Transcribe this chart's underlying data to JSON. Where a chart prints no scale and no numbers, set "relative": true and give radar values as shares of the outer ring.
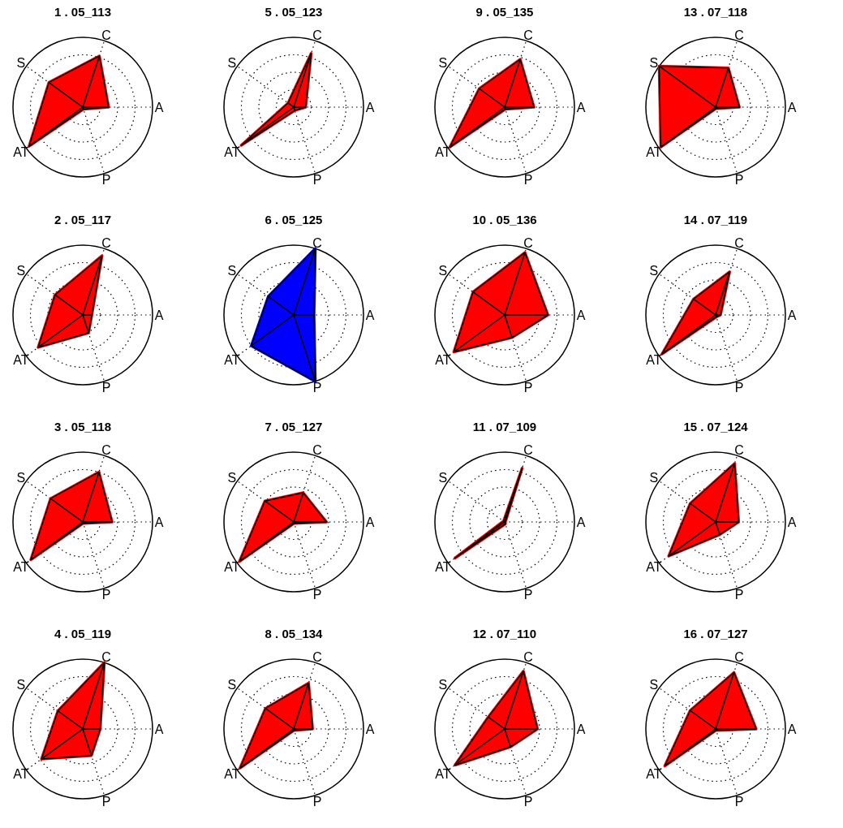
{
  "chart_data": [
    {
      "type": "radar",
      "title": "1 . 05_113",
      "categories": [
        "C",
        "A",
        "P",
        "AT",
        "S"
      ],
      "relative": true,
      "series": [
        {
          "color": "#ff0000",
          "values": [
            0.77,
            0.37,
            0.03,
            0.95,
            0.6
          ]
        }
      ]
    },
    {
      "type": "radar",
      "title": "5 . 05_123",
      "categories": [
        "C",
        "A",
        "P",
        "AT",
        "S"
      ],
      "relative": true,
      "series": [
        {
          "color": "#ff0000",
          "values": [
            0.81,
            0.17,
            0.05,
            0.93,
            0.1
          ]
        }
      ]
    },
    {
      "type": "radar",
      "title": "9 . 05_135",
      "categories": [
        "C",
        "A",
        "P",
        "AT",
        "S"
      ],
      "relative": true,
      "series": [
        {
          "color": "#ff0000",
          "values": [
            0.72,
            0.42,
            0.03,
            0.97,
            0.45
          ]
        }
      ]
    },
    {
      "type": "radar",
      "title": "13 . 07_118",
      "categories": [
        "C",
        "A",
        "P",
        "AT",
        "S"
      ],
      "relative": true,
      "series": [
        {
          "color": "#ff0000",
          "values": [
            0.59,
            0.34,
            0.02,
            0.97,
            1
          ]
        }
      ]
    },
    {
      "type": "radar",
      "title": "2 . 05_117",
      "categories": [
        "C",
        "A",
        "P",
        "AT",
        "S"
      ],
      "relative": true,
      "series": [
        {
          "color": "#ff0000",
          "values": [
            0.89,
            0.13,
            0.27,
            0.79,
            0.49
          ]
        }
      ]
    },
    {
      "type": "radar",
      "title": "6 . 05_125",
      "categories": [
        "C",
        "A",
        "P",
        "AT",
        "S"
      ],
      "relative": true,
      "series": [
        {
          "color": "#0000ff",
          "values": [
            1,
            0.29,
            1,
            0.75,
            0.45
          ]
        }
      ]
    },
    {
      "type": "radar",
      "title": "10 . 05_136",
      "categories": [
        "C",
        "A",
        "P",
        "AT",
        "S"
      ],
      "relative": true,
      "series": [
        {
          "color": "#ff0000",
          "values": [
            0.94,
            0.62,
            0.34,
            0.9,
            0.56
          ]
        }
      ]
    },
    {
      "type": "radar",
      "title": "14 . 07_119",
      "categories": [
        "C",
        "A",
        "P",
        "AT",
        "S"
      ],
      "relative": true,
      "series": [
        {
          "color": "#ff0000",
          "values": [
            0.65,
            0.07,
            0.03,
            0.95,
            0.39
          ]
        }
      ]
    },
    {
      "type": "radar",
      "title": "3 . 05_118",
      "categories": [
        "C",
        "A",
        "P",
        "AT",
        "S"
      ],
      "relative": true,
      "series": [
        {
          "color": "#ff0000",
          "values": [
            0.75,
            0.42,
            0.02,
            0.92,
            0.57
          ]
        }
      ]
    },
    {
      "type": "radar",
      "title": "7 . 05_127",
      "categories": [
        "C",
        "A",
        "P",
        "AT",
        "S"
      ],
      "relative": true,
      "series": [
        {
          "color": "#ff0000",
          "values": [
            0.44,
            0.47,
            0.02,
            0.96,
            0.51
          ]
        }
      ]
    },
    {
      "type": "radar",
      "title": "11 . 07_109",
      "categories": [
        "C",
        "A",
        "P",
        "AT",
        "S"
      ],
      "relative": true,
      "series": [
        {
          "color": "#ff0000",
          "values": [
            0.81,
            0.01,
            0.03,
            0.88,
            0.02
          ]
        }
      ]
    },
    {
      "type": "radar",
      "title": "15 . 07_124",
      "categories": [
        "C",
        "A",
        "P",
        "AT",
        "S"
      ],
      "relative": true,
      "series": [
        {
          "color": "#ff0000",
          "values": [
            0.88,
            0.33,
            0.19,
            0.83,
            0.45
          ]
        }
      ]
    },
    {
      "type": "radar",
      "title": "4 . 05_119",
      "categories": [
        "C",
        "A",
        "P",
        "AT",
        "S"
      ],
      "relative": true,
      "series": [
        {
          "color": "#ff0000",
          "values": [
            1,
            0.25,
            0.4,
            0.73,
            0.44
          ]
        }
      ]
    },
    {
      "type": "radar",
      "title": "8 . 05_134",
      "categories": [
        "C",
        "A",
        "P",
        "AT",
        "S"
      ],
      "relative": true,
      "series": [
        {
          "color": "#ff0000",
          "values": [
            0.69,
            0.27,
            0.02,
            0.95,
            0.5
          ]
        }
      ]
    },
    {
      "type": "radar",
      "title": "12 . 07_110",
      "categories": [
        "C",
        "A",
        "P",
        "AT",
        "S"
      ],
      "relative": true,
      "series": [
        {
          "color": "#ff0000",
          "values": [
            0.87,
            0.47,
            0.27,
            0.88,
            0.29
          ]
        }
      ]
    },
    {
      "type": "radar",
      "title": "16 . 07_127",
      "categories": [
        "C",
        "A",
        "P",
        "AT",
        "S"
      ],
      "relative": true,
      "series": [
        {
          "color": "#ff0000",
          "values": [
            0.85,
            0.58,
            0.02,
            0.9,
            0.45
          ]
        }
      ]
    }
  ]
}
